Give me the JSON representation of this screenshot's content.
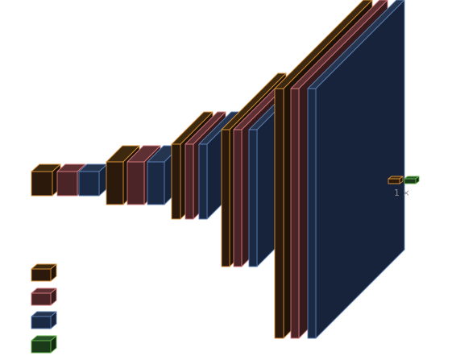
{
  "diagram": {
    "type": "3d-layer-stack",
    "layer_kinds": [
      {
        "kind": "conv",
        "face": "#2b1a0b",
        "top": "#3d2810",
        "side": "#1f1207",
        "edge": "#d48f3a"
      },
      {
        "kind": "norm",
        "face": "#4a2427",
        "top": "#5e2f33",
        "side": "#361a1c",
        "edge": "#d07a7a"
      },
      {
        "kind": "act",
        "face": "#1b2a44",
        "top": "#26354f",
        "side": "#17233a",
        "edge": "#5d7fb2"
      },
      {
        "kind": "dense",
        "face": "#1a3a1a",
        "top": "#295329",
        "side": "#122a12",
        "edge": "#63b04a"
      }
    ],
    "output_label": "1 ×"
  }
}
